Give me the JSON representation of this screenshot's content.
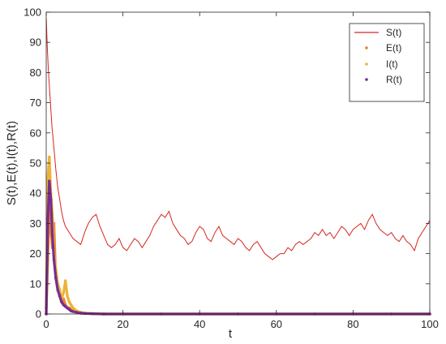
{
  "chart_data": {
    "type": "line",
    "title": "",
    "xlabel": "t",
    "ylabel": "S(t),E(t),I(t),R(t)",
    "xlim": [
      0,
      100
    ],
    "ylim": [
      0,
      100
    ],
    "xticks": [
      0,
      20,
      40,
      60,
      80,
      100
    ],
    "yticks": [
      0,
      10,
      20,
      30,
      40,
      50,
      60,
      70,
      80,
      90,
      100
    ],
    "grid": false,
    "legend_position": "top-right",
    "series": [
      {
        "name": "S(t)",
        "color": "#d7261e",
        "style": "line",
        "x": [
          0,
          0.3,
          0.6,
          1,
          1.5,
          2,
          2.5,
          3,
          3.5,
          4,
          4.5,
          5,
          6,
          7,
          8,
          9,
          10,
          11,
          12,
          13,
          14,
          15,
          16,
          17,
          18,
          19,
          20,
          21,
          22,
          23,
          24,
          25,
          26,
          27,
          28,
          29,
          30,
          31,
          32,
          33,
          34,
          35,
          36,
          37,
          38,
          39,
          40,
          41,
          42,
          43,
          44,
          45,
          46,
          47,
          48,
          49,
          50,
          51,
          52,
          53,
          54,
          55,
          56,
          57,
          58,
          59,
          60,
          61,
          62,
          63,
          64,
          65,
          66,
          67,
          68,
          69,
          70,
          71,
          72,
          73,
          74,
          75,
          76,
          77,
          78,
          79,
          80,
          81,
          82,
          83,
          84,
          85,
          86,
          87,
          88,
          89,
          90,
          91,
          92,
          93,
          94,
          95,
          96,
          97,
          98,
          99,
          100
        ],
        "values": [
          98,
          88,
          80,
          72,
          62,
          55,
          48,
          42,
          38,
          34,
          31,
          29,
          27,
          25,
          24,
          23,
          27,
          30,
          32,
          33,
          29,
          26,
          23,
          22,
          23,
          25,
          22,
          21,
          23,
          25,
          24,
          22,
          24,
          26,
          29,
          31,
          33,
          32,
          34,
          30,
          28,
          26,
          25,
          23,
          24,
          27,
          29,
          28,
          25,
          24,
          27,
          29,
          26,
          25,
          24,
          23,
          25,
          24,
          22,
          21,
          23,
          24,
          22,
          20,
          19,
          18,
          19,
          20,
          20,
          22,
          21,
          23,
          24,
          23,
          24,
          25,
          27,
          26,
          28,
          26,
          27,
          25,
          27,
          29,
          28,
          26,
          28,
          29,
          30,
          28,
          31,
          33,
          30,
          28,
          27,
          26,
          27,
          25,
          24,
          26,
          24,
          23,
          21,
          25,
          27,
          29,
          31
        ]
      },
      {
        "name": "E(t)",
        "color": "#e8822e",
        "style": "dots",
        "x": [
          0,
          0.4,
          0.8,
          1.2,
          1.6,
          2.0,
          2.5,
          3.0,
          3.5,
          4.0,
          4.5,
          5.0,
          5.5,
          6.0,
          6.5,
          7.0,
          8.0,
          9.0,
          10.0,
          12.0,
          15.0,
          20.0,
          30.0,
          40.0,
          50.0,
          60.0,
          70.0,
          80.0,
          90.0,
          100.0
        ],
        "values": [
          0,
          18,
          35,
          28,
          22,
          30,
          12,
          8,
          6,
          4,
          5,
          3,
          2,
          2,
          1.5,
          1,
          0.5,
          0.3,
          0.2,
          0.1,
          0,
          0,
          0,
          0,
          0,
          0,
          0,
          0,
          0,
          0
        ]
      },
      {
        "name": "I(t)",
        "color": "#ebb437",
        "style": "dots",
        "x": [
          0,
          0.4,
          0.8,
          1.2,
          1.6,
          2.0,
          2.5,
          3.0,
          3.5,
          4.0,
          4.5,
          5.0,
          5.5,
          6.0,
          6.5,
          7.0,
          8.0,
          9.0,
          10.0,
          12.0,
          15.0,
          20.0,
          30.0,
          40.0,
          50.0,
          60.0,
          70.0,
          80.0,
          90.0,
          100.0
        ],
        "values": [
          2,
          45,
          52,
          40,
          33,
          20,
          15,
          10,
          8,
          5,
          7,
          11,
          6,
          4,
          3,
          2,
          1,
          0.5,
          0.3,
          0.1,
          0,
          0,
          0,
          0,
          0,
          0,
          0,
          0,
          0,
          0
        ]
      },
      {
        "name": "R(t)",
        "color": "#7b2d8e",
        "style": "dots",
        "x": [
          0,
          0.4,
          0.8,
          1.2,
          1.6,
          2.0,
          2.5,
          3.0,
          3.5,
          4.0,
          4.5,
          5.0,
          5.5,
          6.0,
          6.5,
          7.0,
          8.0,
          9.0,
          10.0,
          12.0,
          15.0,
          20.0,
          30.0,
          40.0,
          50.0,
          60.0,
          70.0,
          80.0,
          90.0,
          100.0
        ],
        "values": [
          0,
          30,
          44,
          38,
          26,
          18,
          12,
          8,
          6,
          4,
          3,
          2.5,
          2,
          1.5,
          1,
          0.8,
          0.5,
          0.3,
          0.2,
          0.1,
          0,
          0,
          0,
          0,
          0,
          0,
          0,
          0,
          0,
          0
        ]
      }
    ]
  }
}
